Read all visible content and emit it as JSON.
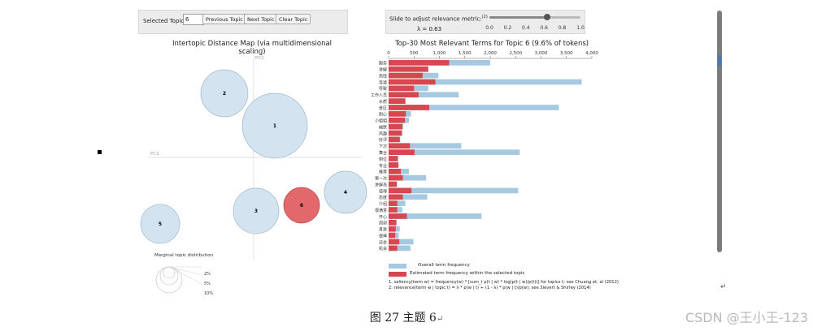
{
  "controls": {
    "selected_topic_label": "Selected Topic:",
    "selected_topic_value": "6",
    "prev_label": "Previous Topic",
    "next_label": "Next Topic",
    "clear_label": "Clear Topic"
  },
  "slider": {
    "label": "Slide to adjust relevance metric:",
    "footnote_mark": "(2)",
    "lambda_text": "λ = 0.63",
    "value": 0.63,
    "ticks": [
      "0.0",
      "0.2",
      "0.4",
      "0.6",
      "0.8",
      "1.0"
    ]
  },
  "map": {
    "title": "Intertopic Distance Map (via multidimensional scaling)",
    "pc1_label": "PC1",
    "pc2_label": "PC2",
    "topics": [
      {
        "id": "1",
        "selected": false
      },
      {
        "id": "2",
        "selected": false
      },
      {
        "id": "3",
        "selected": false
      },
      {
        "id": "4",
        "selected": false
      },
      {
        "id": "5",
        "selected": false
      },
      {
        "id": "6",
        "selected": true
      }
    ],
    "marginal": {
      "title": "Marginal topic distribution",
      "labels": [
        "2%",
        "5%",
        "10%"
      ]
    }
  },
  "bar": {
    "title": "Top-30 Most Relevant Terms for Topic 6 (9.6% of tokens)",
    "legend_overall": "Overall term frequency",
    "legend_estimated": "Estimated term frequency within the selected topic",
    "footnote1": "1. saliency(term w) = frequency(w) * [sum_t p(t | w) * log(p(t | w)/p(t))] for topics t; see Chuang et. al (2012)",
    "footnote2": "2. relevance(term w | topic t) = λ * p(w | t) + (1 - λ) * p(w | t)/p(w); see Sievert & Shirley (2014)"
  },
  "colors": {
    "overall": "#a6c8e0",
    "estimated": "#d6474f",
    "bubble": "#d3e3ef",
    "bubble_stroke": "#9fb7c9",
    "selected_bubble": "#e2686b"
  },
  "chart_data": {
    "type": "bar",
    "title": "Top-30 Most Relevant Terms for Topic 6 (9.6% of tokens)",
    "xlim": [
      0,
      4000
    ],
    "xticks": [
      "0",
      "500",
      "1,000",
      "1,500",
      "2,000",
      "2,500",
      "3,000",
      "3,500",
      "4,000"
    ],
    "categories": [
      "服务",
      "讲解",
      "热情",
      "导游",
      "导致",
      "工作人员",
      "水质",
      "景区",
      "耐心",
      "小姐姐",
      "幽默",
      "风趣",
      "好评",
      "下次",
      "舞台",
      "到位",
      "专业",
      "推荐",
      "第一次",
      "讲解员",
      "值得",
      "态度",
      "介绍",
      "很满意",
      "开心",
      "周到",
      "真是",
      "很棒",
      "还会",
      "机会"
    ],
    "series": [
      {
        "name": "Overall term frequency",
        "values": [
          2000,
          780,
          980,
          3800,
          780,
          1380,
          330,
          3350,
          440,
          400,
          290,
          270,
          230,
          1430,
          2580,
          190,
          200,
          400,
          740,
          170,
          2550,
          760,
          330,
          270,
          1830,
          160,
          220,
          200,
          490,
          430
        ]
      },
      {
        "name": "Estimated term frequency within the selected topic",
        "values": [
          1190,
          780,
          670,
          920,
          500,
          590,
          330,
          800,
          340,
          320,
          270,
          260,
          220,
          420,
          510,
          180,
          190,
          240,
          280,
          160,
          450,
          280,
          170,
          170,
          360,
          150,
          140,
          130,
          210,
          170
        ]
      }
    ]
  },
  "caption": "图 27 主题 6",
  "watermark": "CSDN @王小王-123"
}
